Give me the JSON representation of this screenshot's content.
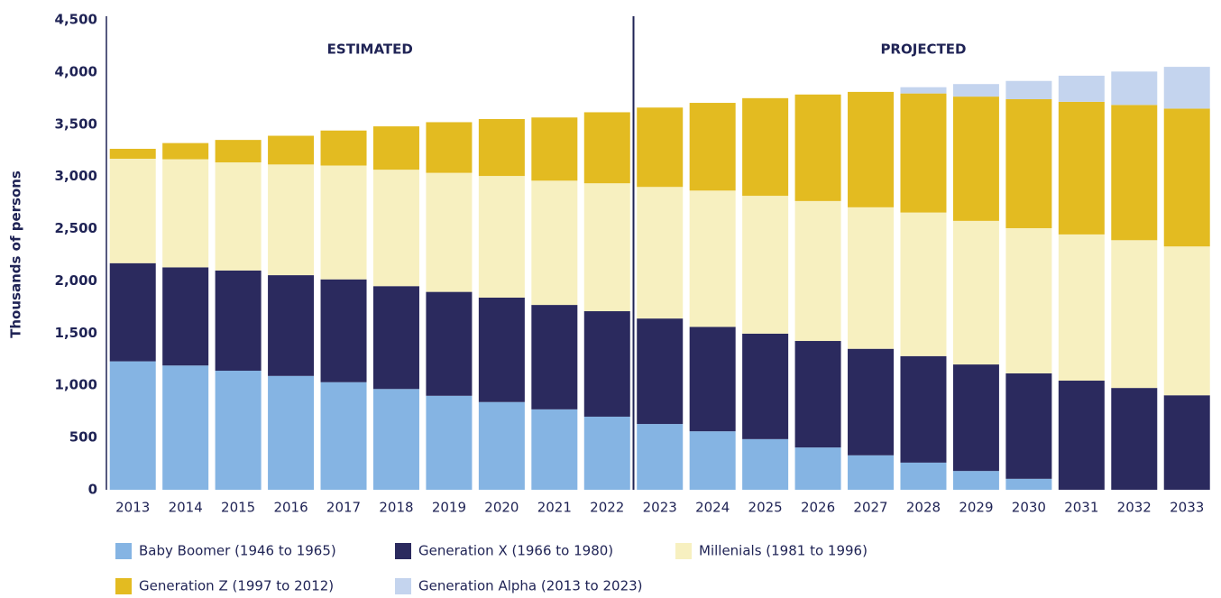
{
  "chart_data": {
    "type": "stacked_bar",
    "y_label": "Thousands of persons",
    "annotations": [
      "ESTIMATED",
      "PROJECTED"
    ],
    "categories": [
      "2013",
      "2014",
      "2015",
      "2016",
      "2017",
      "2018",
      "2019",
      "2020",
      "2021",
      "2022",
      "2023",
      "2024",
      "2025",
      "2026",
      "2027",
      "2028",
      "2029",
      "2030",
      "2031",
      "2032",
      "2033"
    ],
    "series": [
      {
        "name": "Baby Boomer (1946 to 1965)",
        "color": "#85b4e3",
        "values": [
          1230,
          1190,
          1140,
          1090,
          1030,
          965,
          900,
          840,
          770,
          700,
          630,
          560,
          485,
          405,
          330,
          260,
          180,
          105,
          0,
          0,
          0
        ]
      },
      {
        "name": "Generation X (1966 to 1980)",
        "color": "#2b2a5e",
        "values": [
          940,
          940,
          960,
          965,
          985,
          985,
          995,
          1000,
          1000,
          1010,
          1010,
          1000,
          1010,
          1020,
          1020,
          1020,
          1020,
          1010,
          1045,
          975,
          905
        ]
      },
      {
        "name": "Millenials (1981 to 1996)",
        "color": "#f7f0c0",
        "values": [
          1000,
          1035,
          1035,
          1060,
          1090,
          1115,
          1140,
          1165,
          1190,
          1225,
          1260,
          1305,
          1320,
          1340,
          1355,
          1375,
          1375,
          1390,
          1400,
          1415,
          1425
        ]
      },
      {
        "name": "Generation Z (1997 to 2012)",
        "color": "#e3bb21",
        "values": [
          95,
          155,
          215,
          275,
          335,
          415,
          485,
          545,
          605,
          680,
          760,
          840,
          935,
          1020,
          1105,
          1140,
          1190,
          1235,
          1270,
          1295,
          1320
        ]
      },
      {
        "name": "Generation Alpha (2013 to 2023)",
        "color": "#c4d4ee",
        "values": [
          0,
          0,
          0,
          0,
          0,
          0,
          0,
          0,
          0,
          0,
          0,
          0,
          0,
          0,
          0,
          60,
          120,
          175,
          250,
          320,
          400
        ]
      }
    ],
    "ylim": [
      0,
      4500
    ],
    "yticks": [
      0,
      {
        "value": 500,
        "label": "500"
      },
      {
        "value": 1000,
        "label": "1,000"
      },
      {
        "value": 1500,
        "label": "1,500"
      },
      {
        "value": 2000,
        "label": "2,000"
      },
      {
        "value": 2500,
        "label": "2,500"
      },
      {
        "value": 3000,
        "label": "3,000"
      },
      {
        "value": 3500,
        "label": "3,500"
      },
      {
        "value": 4000,
        "label": "4,000"
      },
      {
        "value": 4500,
        "label": "4,500"
      }
    ],
    "grid": false
  }
}
